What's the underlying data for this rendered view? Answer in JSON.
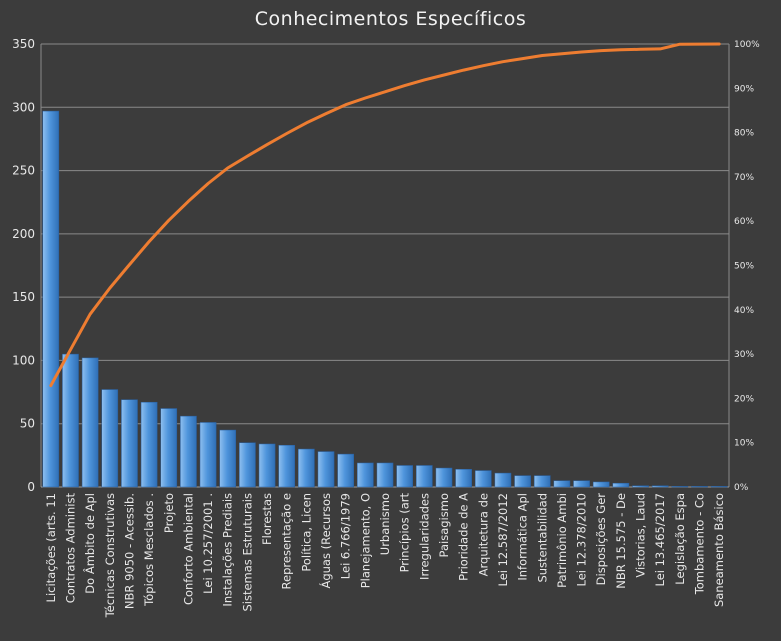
{
  "chart_data": {
    "type": "bar",
    "title": "Conhecimentos Específicos",
    "xlabel": "",
    "ylabel": "",
    "ylim": [
      0,
      350
    ],
    "y_ticks": [
      "0",
      "50",
      "100",
      "150",
      "200",
      "250",
      "300",
      "350"
    ],
    "y2lim": [
      0,
      1
    ],
    "y2_ticks": [
      "0%",
      "10%",
      "20%",
      "30%",
      "40%",
      "50%",
      "60%",
      "70%",
      "80%",
      "90%",
      "100%"
    ],
    "grid": true,
    "legend": "none",
    "categories": [
      "Licitações (arts. 11",
      "Contratos Administ",
      "Do Âmbito de Apl",
      "Técnicas Construtivas",
      "NBR 9050 - Acessib.",
      "Tópicos Mesclados .",
      "Projeto",
      "Conforto Ambiental",
      "Lei 10.257/2001 .",
      "Instalações Prediais",
      "Sistemas Estruturais",
      "Florestas",
      "Representação e",
      "Política, Licen",
      "Águas (Recursos",
      "Lei 6.766/1979",
      "Planejamento, O",
      "Urbanismo",
      "Princípios (art",
      "Irregularidades",
      "Paisagismo",
      "Prioridade de A",
      "Arquitetura de",
      "Lei 12.587/2012",
      "Informática Apl",
      "Sustentabilidad",
      "Patrimônio Ambi",
      "Lei 12.378/2010",
      "Disposições Ger",
      "NBR 15.575 - De",
      "Vistorias, Laud",
      "Lei 13.465/2017",
      "Legislação Espa",
      "Tombamento - Co",
      "Saneamento Básico"
    ],
    "series": [
      {
        "type": "bar",
        "color": "#4a90d9",
        "values": [
          297,
          105,
          102,
          77,
          69,
          67,
          62,
          56,
          51,
          45,
          35,
          34,
          33,
          30,
          28,
          26,
          19,
          19,
          17,
          17,
          15,
          14,
          13,
          11,
          9,
          9,
          5,
          5,
          4,
          3,
          1,
          1,
          0.5,
          0.5,
          0.5
        ]
      },
      {
        "type": "line",
        "axis": "secondary",
        "color": "#ee7d31",
        "values": [
          0.229,
          0.31,
          0.39,
          0.449,
          0.502,
          0.554,
          0.602,
          0.645,
          0.685,
          0.72,
          0.747,
          0.773,
          0.798,
          0.822,
          0.843,
          0.863,
          0.878,
          0.892,
          0.906,
          0.919,
          0.93,
          0.941,
          0.951,
          0.96,
          0.967,
          0.974,
          0.978,
          0.982,
          0.985,
          0.987,
          0.988,
          0.989,
          0.9995,
          0.9998,
          1.0
        ]
      }
    ]
  }
}
